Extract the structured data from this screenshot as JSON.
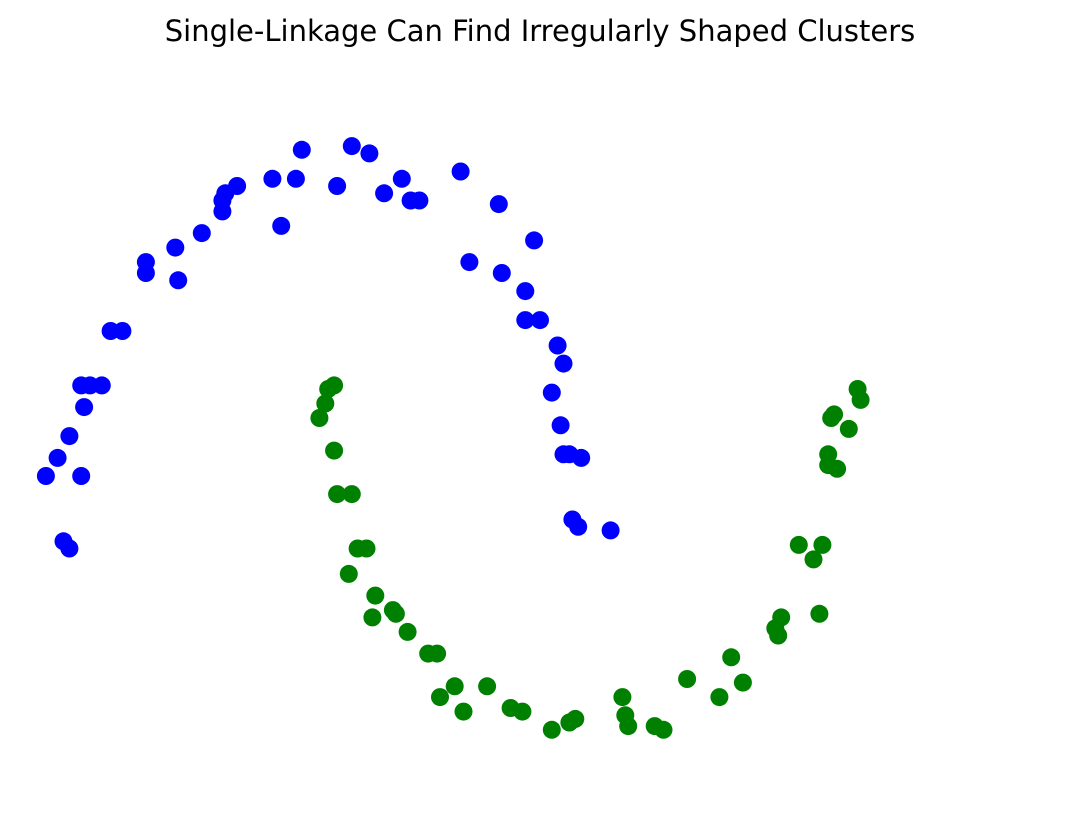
{
  "chart_data": {
    "type": "scatter",
    "title": "Single-Linkage Can Find Irregularly Shaped Clusters",
    "xlabel": "",
    "ylabel": "",
    "axes_visible": false,
    "grid": false,
    "xlim": [
      -1.2,
      2.2
    ],
    "ylim": [
      -0.75,
      1.25
    ],
    "series": [
      {
        "color": "#0000ff",
        "points": [
          [
            -1.18,
            0.13
          ],
          [
            -1.14,
            0.18
          ],
          [
            -1.1,
            0.24
          ],
          [
            -1.06,
            0.13
          ],
          [
            -1.12,
            -0.05
          ],
          [
            -1.1,
            -0.07
          ],
          [
            -1.05,
            0.32
          ],
          [
            -1.06,
            0.38
          ],
          [
            -1.03,
            0.38
          ],
          [
            -0.99,
            0.38
          ],
          [
            -0.96,
            0.53
          ],
          [
            -0.92,
            0.53
          ],
          [
            -0.84,
            0.69
          ],
          [
            -0.84,
            0.72
          ],
          [
            -0.74,
            0.76
          ],
          [
            -0.73,
            0.67
          ],
          [
            -0.65,
            0.8
          ],
          [
            -0.58,
            0.86
          ],
          [
            -0.58,
            0.89
          ],
          [
            -0.57,
            0.91
          ],
          [
            -0.53,
            0.93
          ],
          [
            -0.41,
            0.95
          ],
          [
            -0.38,
            0.82
          ],
          [
            -0.33,
            0.95
          ],
          [
            -0.31,
            1.03
          ],
          [
            -0.19,
            0.93
          ],
          [
            -0.14,
            1.04
          ],
          [
            -0.08,
            1.02
          ],
          [
            -0.03,
            0.91
          ],
          [
            0.03,
            0.95
          ],
          [
            0.06,
            0.89
          ],
          [
            0.09,
            0.89
          ],
          [
            0.23,
            0.97
          ],
          [
            0.26,
            0.72
          ],
          [
            0.36,
            0.88
          ],
          [
            0.37,
            0.69
          ],
          [
            0.45,
            0.64
          ],
          [
            0.45,
            0.56
          ],
          [
            0.5,
            0.56
          ],
          [
            0.48,
            0.78
          ],
          [
            0.56,
            0.49
          ],
          [
            0.58,
            0.44
          ],
          [
            0.54,
            0.36
          ],
          [
            0.57,
            0.27
          ],
          [
            0.58,
            0.19
          ],
          [
            0.6,
            0.19
          ],
          [
            0.64,
            0.18
          ],
          [
            0.63,
            -0.01
          ],
          [
            0.61,
            0.01
          ],
          [
            0.74,
            -0.02
          ]
        ]
      },
      {
        "color": "#008000",
        "points": [
          [
            -0.2,
            0.38
          ],
          [
            -0.22,
            0.37
          ],
          [
            -0.23,
            0.33
          ],
          [
            -0.25,
            0.29
          ],
          [
            -0.2,
            0.2
          ],
          [
            -0.19,
            0.08
          ],
          [
            -0.14,
            0.08
          ],
          [
            -0.12,
            -0.07
          ],
          [
            -0.09,
            -0.07
          ],
          [
            -0.15,
            -0.14
          ],
          [
            -0.06,
            -0.2
          ],
          [
            -0.07,
            -0.26
          ],
          [
            0.0,
            -0.24
          ],
          [
            0.01,
            -0.25
          ],
          [
            0.05,
            -0.3
          ],
          [
            0.12,
            -0.36
          ],
          [
            0.15,
            -0.36
          ],
          [
            0.16,
            -0.48
          ],
          [
            0.21,
            -0.45
          ],
          [
            0.24,
            -0.52
          ],
          [
            0.32,
            -0.45
          ],
          [
            0.4,
            -0.51
          ],
          [
            0.44,
            -0.52
          ],
          [
            0.54,
            -0.57
          ],
          [
            0.6,
            -0.55
          ],
          [
            0.62,
            -0.54
          ],
          [
            0.78,
            -0.48
          ],
          [
            0.79,
            -0.53
          ],
          [
            0.8,
            -0.56
          ],
          [
            0.89,
            -0.56
          ],
          [
            0.92,
            -0.57
          ],
          [
            1.0,
            -0.43
          ],
          [
            1.11,
            -0.48
          ],
          [
            1.15,
            -0.37
          ],
          [
            1.19,
            -0.44
          ],
          [
            1.3,
            -0.29
          ],
          [
            1.32,
            -0.26
          ],
          [
            1.31,
            -0.31
          ],
          [
            1.38,
            -0.06
          ],
          [
            1.43,
            -0.1
          ],
          [
            1.45,
            -0.25
          ],
          [
            1.46,
            -0.06
          ],
          [
            1.48,
            0.16
          ],
          [
            1.48,
            0.19
          ],
          [
            1.51,
            0.15
          ],
          [
            1.49,
            0.29
          ],
          [
            1.55,
            0.26
          ],
          [
            1.58,
            0.37
          ],
          [
            1.59,
            0.34
          ],
          [
            1.5,
            0.3
          ]
        ]
      }
    ]
  }
}
